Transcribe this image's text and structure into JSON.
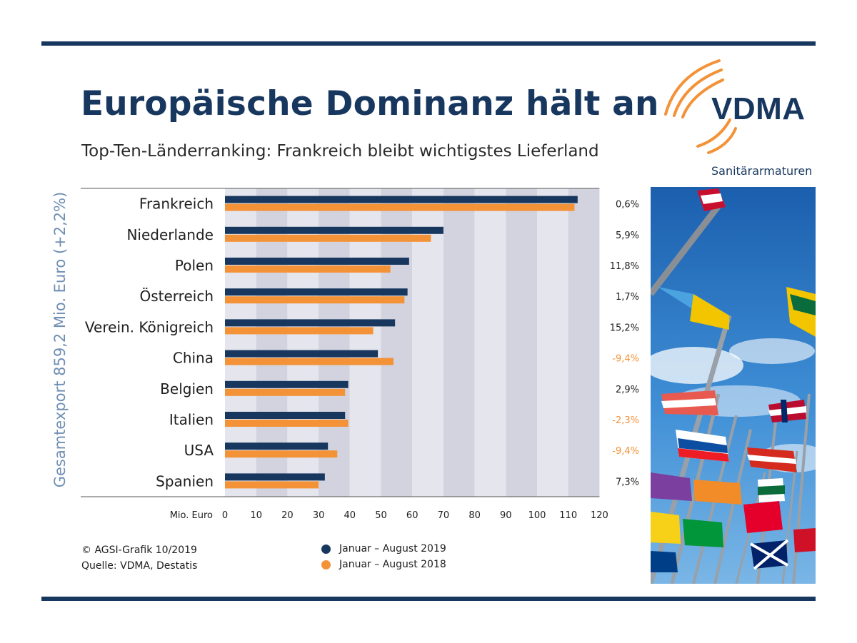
{
  "title": "Europäische Dominanz hält an",
  "subtitle": "Top-Ten-Länderranking: Frankreich bleibt wichtigstes Lieferland",
  "logo": {
    "text": "VDMA",
    "sub": "Sanitärarmaturen"
  },
  "vertical_label": "Gesamtexport 859,2 Mio. Euro (+2,2%)",
  "footer": {
    "copyright": "© AGSI-Grafik 10/2019",
    "source": "Quelle: VDMA, Destatis"
  },
  "colors": {
    "series2019": "#17375f",
    "series2018": "#f39237",
    "negative": "#f39237",
    "positive": "#1e1e1e",
    "band": "#d3d3df",
    "band_light": "#e5e5ed",
    "rule": "#17375f"
  },
  "chart_data": {
    "type": "bar",
    "orientation": "horizontal",
    "categories": [
      "Frankreich",
      "Niederlande",
      "Polen",
      "Österreich",
      "Verein. Königreich",
      "China",
      "Belgien",
      "Italien",
      "USA",
      "Spanien"
    ],
    "series": [
      {
        "name": "Januar – August 2019",
        "values": [
          113,
          70,
          59,
          58.5,
          54.5,
          49,
          39.5,
          38.5,
          33,
          32
        ]
      },
      {
        "name": "Januar – August 2018",
        "values": [
          112,
          66,
          53,
          57.5,
          47.5,
          54,
          38.5,
          39.5,
          36,
          30
        ]
      }
    ],
    "change_labels": [
      "0,6%",
      "5,9%",
      "11,8%",
      "1,7%",
      "15,2%",
      "-9,4%",
      "2,9%",
      "-2,3%",
      "-9,4%",
      "7,3%"
    ],
    "change_negative": [
      false,
      false,
      false,
      false,
      false,
      true,
      false,
      true,
      true,
      false
    ],
    "x_ticks": [
      0,
      10,
      20,
      30,
      40,
      50,
      60,
      70,
      80,
      90,
      100,
      110,
      120
    ],
    "x_tick_labels": [
      "0",
      "10",
      "20",
      "30",
      "40",
      "50",
      "60",
      "70",
      "80",
      "90",
      "100",
      "110",
      "120"
    ],
    "xlabel": "Mio. Euro",
    "xlim": [
      0,
      120
    ],
    "legend": "bottom-center"
  }
}
